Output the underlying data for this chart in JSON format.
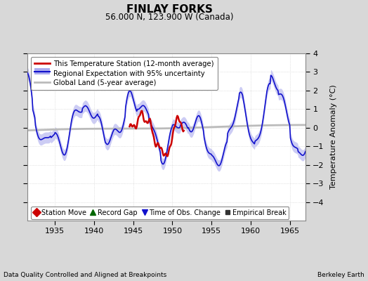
{
  "title": "FINLAY FORKS",
  "subtitle": "56.000 N, 123.900 W (Canada)",
  "ylabel": "Temperature Anomaly (°C)",
  "xlabel_note": "Data Quality Controlled and Aligned at Breakpoints",
  "credit": "Berkeley Earth",
  "xlim": [
    1931.5,
    1967.0
  ],
  "ylim": [
    -5,
    4
  ],
  "yticks": [
    -4,
    -3,
    -2,
    -1,
    0,
    1,
    2,
    3,
    4
  ],
  "xticks": [
    1935,
    1940,
    1945,
    1950,
    1955,
    1960,
    1965
  ],
  "bg_color": "#d8d8d8",
  "plot_bg_color": "#ffffff",
  "blue_line_color": "#1111cc",
  "blue_fill_color": "#aaaaee",
  "red_line_color": "#cc0000",
  "gray_line_color": "#bbbbbb",
  "grid_color": "#cccccc",
  "legend1_entries": [
    {
      "label": "This Temperature Station (12-month average)",
      "color": "#cc0000"
    },
    {
      "label": "Regional Expectation with 95% uncertainty",
      "color": "#1111cc"
    },
    {
      "label": "Global Land (5-year average)",
      "color": "#bbbbbb"
    }
  ],
  "legend2_entries": [
    {
      "label": "Station Move",
      "marker": "D",
      "color": "#cc0000"
    },
    {
      "label": "Record Gap",
      "marker": "^",
      "color": "#006600"
    },
    {
      "label": "Time of Obs. Change",
      "marker": "v",
      "color": "#1111cc"
    },
    {
      "label": "Empirical Break",
      "marker": "s",
      "color": "#333333"
    }
  ]
}
